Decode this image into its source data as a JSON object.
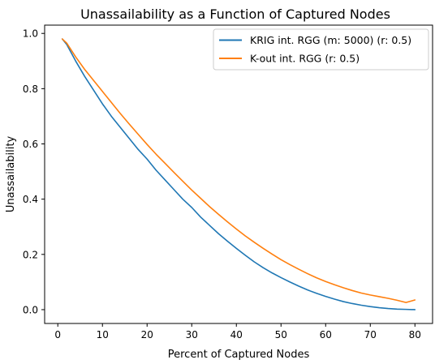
{
  "chart_data": {
    "type": "line",
    "title": "Unassailability as a Function of Captured Nodes",
    "xlabel": "Percent of Captured Nodes",
    "ylabel": "Unassailability",
    "xlim": [
      -2.95,
      83.95
    ],
    "ylim": [
      -0.05,
      1.03
    ],
    "xticks": [
      0,
      10,
      20,
      30,
      40,
      50,
      60,
      70,
      80
    ],
    "yticks": [
      0.0,
      0.2,
      0.4,
      0.6,
      0.8,
      1.0
    ],
    "xtick_labels": [
      "0",
      "10",
      "20",
      "30",
      "40",
      "50",
      "60",
      "70",
      "80"
    ],
    "ytick_labels": [
      "0.0",
      "0.2",
      "0.4",
      "0.6",
      "0.8",
      "1.0"
    ],
    "grid": false,
    "legend_position": "top-right",
    "x": [
      1,
      2,
      4,
      6,
      8,
      10,
      12,
      14,
      16,
      18,
      20,
      22,
      24,
      26,
      28,
      30,
      32,
      34,
      36,
      38,
      40,
      42,
      44,
      46,
      48,
      50,
      52,
      54,
      56,
      58,
      60,
      62,
      64,
      66,
      68,
      70,
      72,
      74,
      76,
      78,
      80
    ],
    "series": [
      {
        "name": "KRIG int. RGG (m: 5000) (r: 0.5)",
        "color": "#1f77b4",
        "values": [
          0.98,
          0.96,
          0.9,
          0.845,
          0.795,
          0.745,
          0.7,
          0.66,
          0.62,
          0.58,
          0.545,
          0.505,
          0.47,
          0.435,
          0.4,
          0.37,
          0.335,
          0.305,
          0.275,
          0.248,
          0.222,
          0.197,
          0.173,
          0.152,
          0.133,
          0.116,
          0.1,
          0.085,
          0.071,
          0.059,
          0.048,
          0.038,
          0.029,
          0.022,
          0.016,
          0.011,
          0.007,
          0.004,
          0.002,
          0.001,
          0.0
        ]
      },
      {
        "name": "K-out int. RGG (r: 0.5)",
        "color": "#ff7f0e",
        "values": [
          0.98,
          0.965,
          0.915,
          0.87,
          0.83,
          0.79,
          0.75,
          0.71,
          0.672,
          0.635,
          0.598,
          0.563,
          0.53,
          0.497,
          0.465,
          0.433,
          0.403,
          0.373,
          0.345,
          0.318,
          0.292,
          0.267,
          0.244,
          0.222,
          0.201,
          0.181,
          0.163,
          0.146,
          0.13,
          0.115,
          0.102,
          0.09,
          0.079,
          0.069,
          0.06,
          0.053,
          0.047,
          0.041,
          0.034,
          0.026,
          0.035
        ]
      }
    ]
  }
}
